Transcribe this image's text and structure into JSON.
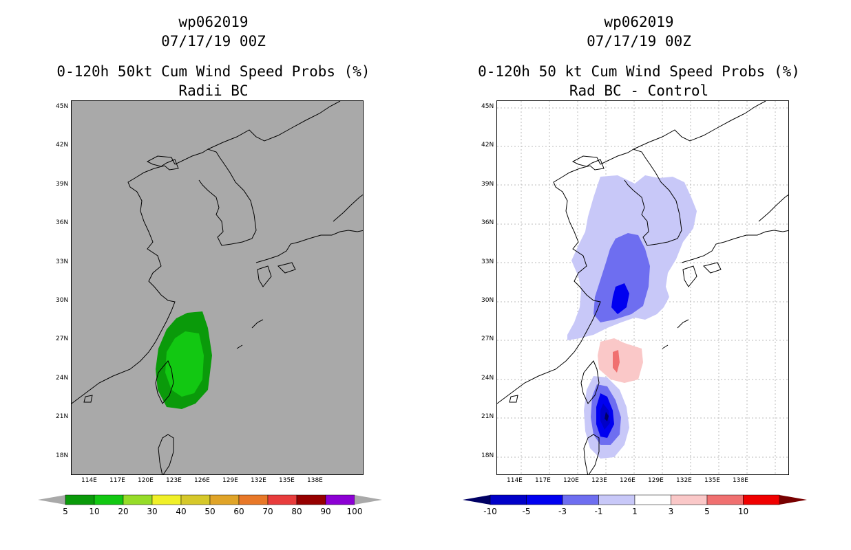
{
  "left": {
    "storm": "wp062019",
    "date": "07/17/19 00Z",
    "title": "0-120h 50kt Cum Wind Speed Probs (%)",
    "subtitle": "Radii BC",
    "lat_labels": [
      "45N",
      "42N",
      "39N",
      "36N",
      "33N",
      "30N",
      "27N",
      "24N",
      "21N",
      "18N"
    ],
    "lon_labels": [
      "114E",
      "117E",
      "120E",
      "123E",
      "126E",
      "129E",
      "132E",
      "135E",
      "138E"
    ],
    "colorbar": {
      "labels": [
        "5",
        "10",
        "20",
        "30",
        "40",
        "50",
        "60",
        "70",
        "80",
        "90",
        "100"
      ],
      "colors": [
        "#0a9a0a",
        "#12c812",
        "#96dc28",
        "#f0f028",
        "#d6c82a",
        "#e0a428",
        "#e87828",
        "#e83c3c",
        "#960000",
        "#8c00d4"
      ]
    }
  },
  "right": {
    "storm": "wp062019",
    "date": "07/17/19 00Z",
    "title": "0-120h 50 kt Cum Wind Speed Probs (%)",
    "subtitle": "Rad BC - Control",
    "lat_labels": [
      "45N",
      "42N",
      "39N",
      "36N",
      "33N",
      "30N",
      "27N",
      "24N",
      "21N",
      "18N"
    ],
    "lon_labels": [
      "114E",
      "117E",
      "120E",
      "123E",
      "126E",
      "129E",
      "132E",
      "135E",
      "138E"
    ],
    "colorbar": {
      "labels": [
        "-10",
        "-5",
        "-3",
        "-1",
        "1",
        "3",
        "5",
        "10"
      ],
      "colors": [
        "#0000c8",
        "#0000f0",
        "#6e6ef0",
        "#c8c8f8",
        "#ffffff",
        "#fac8c8",
        "#f07070",
        "#f00000"
      ],
      "end_low": "#000064",
      "end_high": "#780000"
    }
  }
}
